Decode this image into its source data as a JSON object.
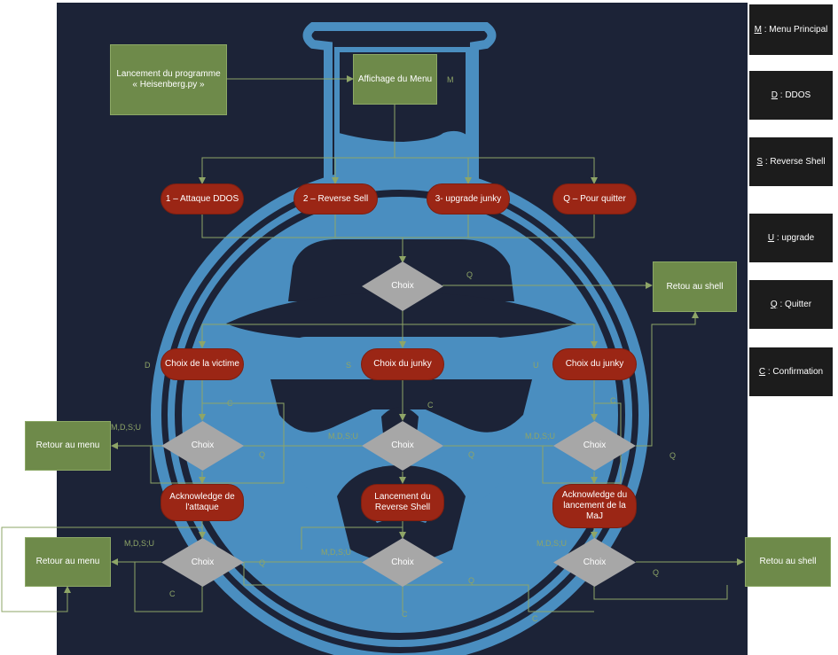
{
  "colors": {
    "background": "#1c2337",
    "logo": "#4a8ec0",
    "start_box": "#6e8a4a",
    "option_pill": "#9b2615",
    "decision": "#a7a7a7",
    "connector": "#8ea567",
    "legend_bg": "#1c1c1c"
  },
  "nodes": {
    "start": "Lancement du programme « Heisenberg.py »",
    "menu": "Affichage du Menu",
    "opt_ddos": "1 – Attaque DDOS",
    "opt_reverse": "2 – Reverse Sell",
    "opt_upgrade": "3- upgrade junky",
    "opt_quit": "Q – Pour quitter",
    "choix_main": "Choix",
    "retour_shell_top": "Retou au shell",
    "choix_victime": "Choix de la victime",
    "choix_junky_mid": "Choix du junky",
    "choix_junky_right": "Choix du junky",
    "retour_menu_top": "Retour au menu",
    "choix_left": "Choix",
    "choix_center": "Choix",
    "choix_right": "Choix",
    "ack_attaque": "Acknowledge de l'attaque",
    "lancement_reverse": "Lancement du Reverse Shell",
    "ack_maj": "Acknowledge du lancement de la MaJ",
    "retour_menu_bottom": "Retour au menu",
    "choix_bl": "Choix",
    "choix_bc": "Choix",
    "choix_br": "Choix",
    "retour_shell_bottom": "Retou au shell"
  },
  "edge_labels": {
    "menu_m": "M",
    "main_q": "Q",
    "left_d": "D",
    "mid_s": "S",
    "right_u": "U",
    "top_c_left": "C",
    "top_c_mid": "C",
    "top_c_right": "C",
    "mdsu_left": "M,D,S;U",
    "mdsu_center": "M,D,S;U",
    "mdsu_right": "M,D,S;U",
    "q_small_left": "Q",
    "q_small_center": "Q",
    "q_right_mid": "Q",
    "mdsu_bl": "M,D,S;U",
    "mdsu_bc": "M,D,S;U",
    "mdsu_br": "M,D,S;U",
    "q_bl": "Q",
    "q_bc": "Q",
    "q_br": "Q",
    "c_bl": "C",
    "c_bc": "C",
    "c_br": "C"
  },
  "legend": [
    {
      "key": "M",
      "text": ": Menu Principal"
    },
    {
      "key": "D",
      "text": ": DDOS"
    },
    {
      "key": "S",
      "text": ": Reverse Shell"
    },
    {
      "key": "U",
      "text": ": upgrade"
    },
    {
      "key": "Q",
      "text": ": Quitter"
    },
    {
      "key": "C",
      "text": ": Confirmation"
    }
  ]
}
